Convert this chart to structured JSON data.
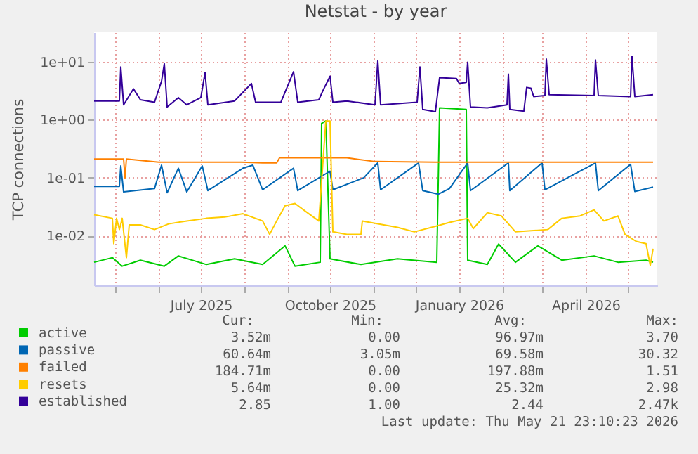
{
  "chart_data": {
    "type": "line",
    "title": "Netstat - by year",
    "ylabel": "TCP connections",
    "log": true,
    "grid": true,
    "legend": "bottom left",
    "xlim": [
      "2025-04-16",
      "2026-05-22"
    ],
    "xticks": [
      {
        "value": "2025-05-01",
        "label": null
      },
      {
        "value": "2025-06-01",
        "label": null
      },
      {
        "value": "2025-07-01",
        "label": "July 2025"
      },
      {
        "value": "2025-08-01",
        "label": null
      },
      {
        "value": "2025-09-01",
        "label": null
      },
      {
        "value": "2025-10-01",
        "label": "October 2025"
      },
      {
        "value": "2025-11-01",
        "label": null
      },
      {
        "value": "2025-12-01",
        "label": null
      },
      {
        "value": "2026-01-01",
        "label": "January 2026"
      },
      {
        "value": "2026-02-01",
        "label": null
      },
      {
        "value": "2026-03-01",
        "label": null
      },
      {
        "value": "2026-04-01",
        "label": "April 2026"
      },
      {
        "value": "2026-05-01",
        "label": null
      }
    ],
    "ylim": [
      0.0014,
      32
    ],
    "yticks": [
      {
        "value": 0.01,
        "label": "1e-02"
      },
      {
        "value": 0.1,
        "label": "1e-01"
      },
      {
        "value": 1,
        "label": "1e+00"
      },
      {
        "value": 10,
        "label": "1e+01"
      }
    ],
    "series": [
      {
        "name": "active",
        "color": "#00cc00",
        "x": [
          "2025-04-16",
          "2025-04-29",
          "2025-05-06",
          "2025-05-19",
          "2025-06-05",
          "2025-06-15",
          "2025-07-05",
          "2025-07-25",
          "2025-08-14",
          "2025-08-30",
          "2025-09-06",
          "2025-09-24",
          "2025-09-25",
          "2025-09-28",
          "2025-10-01",
          "2025-10-23",
          "2025-11-18",
          "2025-12-16",
          "2025-12-18",
          "2026-01-06",
          "2026-01-07",
          "2026-01-21",
          "2026-01-29",
          "2026-02-10",
          "2026-02-26",
          "2026-03-15",
          "2026-04-07",
          "2026-04-24",
          "2026-05-14",
          "2026-05-19"
        ],
        "values": [
          0.0035,
          0.0042,
          0.003,
          0.0038,
          0.003,
          0.0045,
          0.0032,
          0.004,
          0.0032,
          0.0067,
          0.003,
          0.0035,
          0.86,
          0.95,
          0.004,
          0.0032,
          0.004,
          0.0035,
          1.6,
          1.5,
          0.0038,
          0.0032,
          0.0072,
          0.0035,
          0.0067,
          0.0038,
          0.0045,
          0.0035,
          0.0038,
          0.0035
        ]
      },
      {
        "name": "passive",
        "color": "#0066b3",
        "x": [
          "2025-04-16",
          "2025-05-04",
          "2025-05-05",
          "2025-05-07",
          "2025-05-29",
          "2025-06-03",
          "2025-06-07",
          "2025-06-15",
          "2025-06-21",
          "2025-07-02",
          "2025-07-06",
          "2025-07-31",
          "2025-08-07",
          "2025-08-14",
          "2025-09-05",
          "2025-09-08",
          "2025-10-01",
          "2025-10-03",
          "2025-10-25",
          "2025-11-04",
          "2025-11-06",
          "2025-12-03",
          "2025-12-06",
          "2025-12-17",
          "2025-12-25",
          "2026-01-07",
          "2026-01-09",
          "2026-02-05",
          "2026-02-06",
          "2026-03-01",
          "2026-03-03",
          "2026-04-08",
          "2026-04-10",
          "2026-05-03",
          "2026-05-06",
          "2026-05-19"
        ],
        "values": [
          0.071,
          0.071,
          0.16,
          0.057,
          0.065,
          0.165,
          0.055,
          0.146,
          0.057,
          0.16,
          0.06,
          0.146,
          0.165,
          0.062,
          0.146,
          0.06,
          0.13,
          0.062,
          0.1,
          0.18,
          0.062,
          0.18,
          0.06,
          0.052,
          0.065,
          0.18,
          0.06,
          0.18,
          0.06,
          0.18,
          0.062,
          0.18,
          0.06,
          0.17,
          0.058,
          0.069
        ]
      },
      {
        "name": "failed",
        "color": "#ff8000",
        "x": [
          "2025-04-16",
          "2025-05-07",
          "2025-05-08",
          "2025-05-09",
          "2025-06-01",
          "2025-07-30",
          "2025-08-14",
          "2025-08-24",
          "2025-08-26",
          "2025-10-13",
          "2025-11-02",
          "2025-12-15",
          "2026-05-19"
        ],
        "values": [
          0.21,
          0.21,
          0.1,
          0.21,
          0.185,
          0.185,
          0.18,
          0.18,
          0.22,
          0.22,
          0.19,
          0.185,
          0.185
        ]
      },
      {
        "name": "resets",
        "color": "#ffcc00",
        "x": [
          "2025-04-16",
          "2025-04-29",
          "2025-04-30",
          "2025-05-02",
          "2025-05-04",
          "2025-05-06",
          "2025-05-09",
          "2025-05-11",
          "2025-05-19",
          "2025-05-29",
          "2025-06-08",
          "2025-06-21",
          "2025-07-05",
          "2025-07-18",
          "2025-07-31",
          "2025-08-14",
          "2025-08-19",
          "2025-08-24",
          "2025-08-30",
          "2025-09-06",
          "2025-09-13",
          "2025-09-23",
          "2025-09-28",
          "2025-10-01",
          "2025-10-03",
          "2025-10-13",
          "2025-10-23",
          "2025-10-24",
          "2025-11-18",
          "2025-11-30",
          "2025-12-17",
          "2025-12-25",
          "2026-01-07",
          "2026-01-11",
          "2026-01-21",
          "2026-01-31",
          "2026-02-10",
          "2026-03-05",
          "2026-03-15",
          "2026-03-28",
          "2026-04-07",
          "2026-04-14",
          "2026-04-24",
          "2026-04-29",
          "2026-05-07",
          "2026-05-14",
          "2026-05-17",
          "2026-05-19"
        ],
        "values": [
          0.023,
          0.02,
          0.0073,
          0.02,
          0.0128,
          0.02,
          0.0042,
          0.0154,
          0.0154,
          0.0128,
          0.016,
          0.018,
          0.02,
          0.021,
          0.024,
          0.018,
          0.0106,
          0.018,
          0.033,
          0.036,
          0.027,
          0.018,
          0.95,
          0.95,
          0.0117,
          0.0106,
          0.0106,
          0.018,
          0.014,
          0.0117,
          0.015,
          0.017,
          0.02,
          0.0133,
          0.025,
          0.022,
          0.0117,
          0.0128,
          0.02,
          0.022,
          0.028,
          0.018,
          0.022,
          0.0106,
          0.008,
          0.0073,
          0.0031,
          0.006
        ]
      },
      {
        "name": "established",
        "color": "#330099",
        "x": [
          "2025-04-16",
          "2025-05-04",
          "2025-05-05",
          "2025-05-07",
          "2025-05-14",
          "2025-05-19",
          "2025-05-29",
          "2025-06-03",
          "2025-06-05",
          "2025-06-07",
          "2025-06-15",
          "2025-06-21",
          "2025-07-01",
          "2025-07-04",
          "2025-07-06",
          "2025-07-25",
          "2025-08-06",
          "2025-08-09",
          "2025-08-27",
          "2025-09-05",
          "2025-09-08",
          "2025-09-23",
          "2025-09-26",
          "2025-10-01",
          "2025-10-03",
          "2025-10-13",
          "2025-11-02",
          "2025-11-04",
          "2025-11-06",
          "2025-12-02",
          "2025-12-04",
          "2025-12-06",
          "2025-12-15",
          "2025-12-18",
          "2025-12-30",
          "2026-01-01",
          "2026-01-06",
          "2026-01-07",
          "2026-01-09",
          "2026-01-21",
          "2026-02-04",
          "2026-02-05",
          "2026-02-06",
          "2026-02-16",
          "2026-02-18",
          "2026-02-21",
          "2026-02-23",
          "2026-03-03",
          "2026-03-04",
          "2026-03-06",
          "2026-04-07",
          "2026-04-08",
          "2026-04-10",
          "2026-05-03",
          "2026-05-04",
          "2026-05-06",
          "2026-05-19"
        ],
        "values": [
          2.1,
          2.1,
          8.1,
          1.8,
          3.4,
          2.2,
          2.0,
          4.6,
          9.2,
          1.65,
          2.4,
          1.8,
          2.4,
          6.5,
          1.8,
          2.1,
          4.2,
          2.0,
          2.0,
          6.7,
          2.0,
          2.2,
          3.2,
          5.6,
          2.0,
          2.1,
          1.8,
          10.3,
          1.8,
          2.0,
          8.1,
          1.5,
          1.37,
          5.3,
          5.1,
          4.2,
          4.4,
          9.8,
          1.65,
          1.6,
          1.8,
          6.1,
          1.5,
          1.4,
          3.6,
          3.5,
          2.5,
          2.6,
          11.1,
          2.7,
          2.6,
          10.7,
          2.6,
          2.5,
          12.4,
          2.5,
          2.7
        ]
      }
    ],
    "annotations": [
      "Cur:",
      "Min:",
      "Avg:",
      "Max:",
      "3.52m",
      "0.00",
      "96.97m",
      "3.70",
      "60.64m",
      "3.05m",
      "69.58m",
      "30.32",
      "184.71m",
      "0.00",
      "197.88m",
      "1.51",
      "5.64m",
      "0.00",
      "25.32m",
      "2.98",
      "2.85",
      "1.00",
      "2.44",
      "2.47k",
      "Last update: Thu May 21 23:10:23 2026"
    ]
  }
}
